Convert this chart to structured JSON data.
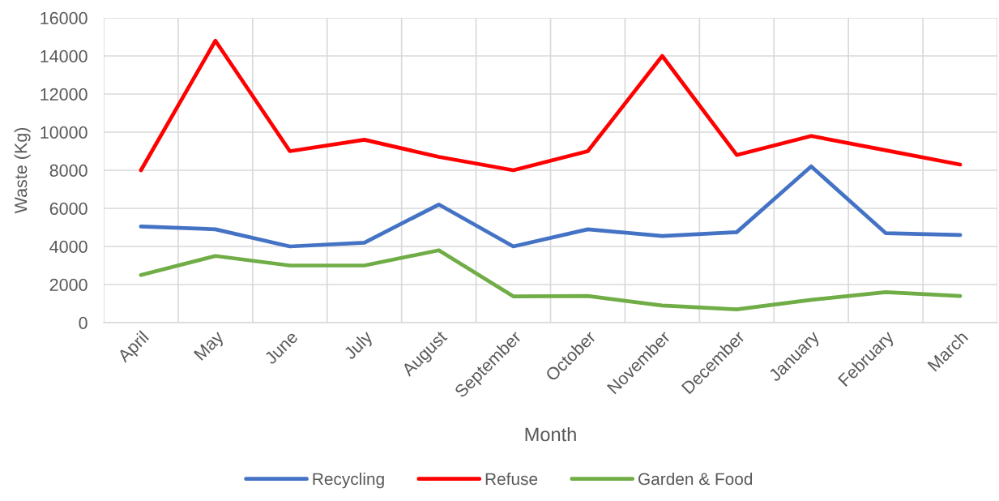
{
  "chart_data": {
    "type": "line",
    "xlabel": "Month",
    "ylabel": "Waste (Kg)",
    "categories": [
      "April",
      "May",
      "June",
      "July",
      "August",
      "September",
      "October",
      "November",
      "December",
      "January",
      "February",
      "March"
    ],
    "series": [
      {
        "name": "Recycling",
        "color": "#4472c4",
        "values": [
          5050,
          4900,
          4000,
          4200,
          6200,
          4000,
          4900,
          4550,
          4750,
          8200,
          4700,
          4600
        ]
      },
      {
        "name": "Refuse",
        "color": "#ff0000",
        "values": [
          8000,
          14800,
          9000,
          9600,
          8700,
          8000,
          9000,
          14000,
          8800,
          9800,
          9050,
          8300
        ]
      },
      {
        "name": "Garden & Food",
        "color": "#70ad47",
        "values": [
          2500,
          3500,
          3000,
          3000,
          3800,
          1380,
          1400,
          900,
          700,
          1200,
          1600,
          1400
        ]
      }
    ],
    "ylim": [
      0,
      16000
    ],
    "yticks": [
      0,
      2000,
      4000,
      6000,
      8000,
      10000,
      12000,
      14000,
      16000
    ],
    "grid": true,
    "legend": "bottom",
    "marker": "none",
    "line_style": "solid"
  }
}
